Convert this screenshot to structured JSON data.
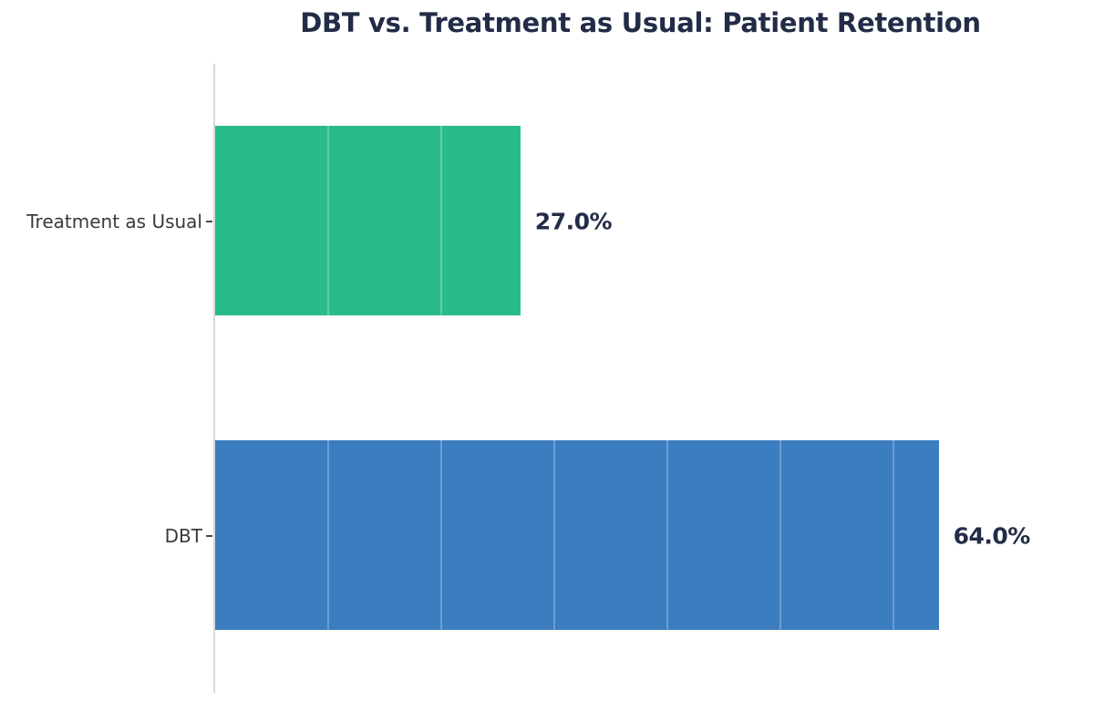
{
  "title": "DBT vs. Treatment as Usual: Patient Retention",
  "chart_data": {
    "type": "bar",
    "orientation": "horizontal",
    "title": "DBT vs. Treatment as Usual: Patient Retention",
    "categories_top_to_bottom": [
      "Treatment as Usual",
      "DBT"
    ],
    "values": [
      27.0,
      64.0
    ],
    "value_labels": [
      "27.0%",
      "64.0%"
    ],
    "bar_colors": [
      "#2abb8c",
      "#3c7dc0"
    ],
    "xlabel": "",
    "ylabel": "",
    "xlim": [
      0,
      75
    ],
    "gridline_interval": 10,
    "grid": "vertical white gridlines, visible only across bars",
    "x_tick_labels_visible": false,
    "legend": "none"
  },
  "colors": {
    "background": "#ffffff",
    "title_text": "#222c47",
    "value_text": "#222c47",
    "category_text": "#3a3a3a",
    "axis_line": "#d8d8d8",
    "tick": "#4a4a4a",
    "bar_treatment_as_usual": "#2abb8c",
    "bar_dbt": "#3c7dc0"
  }
}
